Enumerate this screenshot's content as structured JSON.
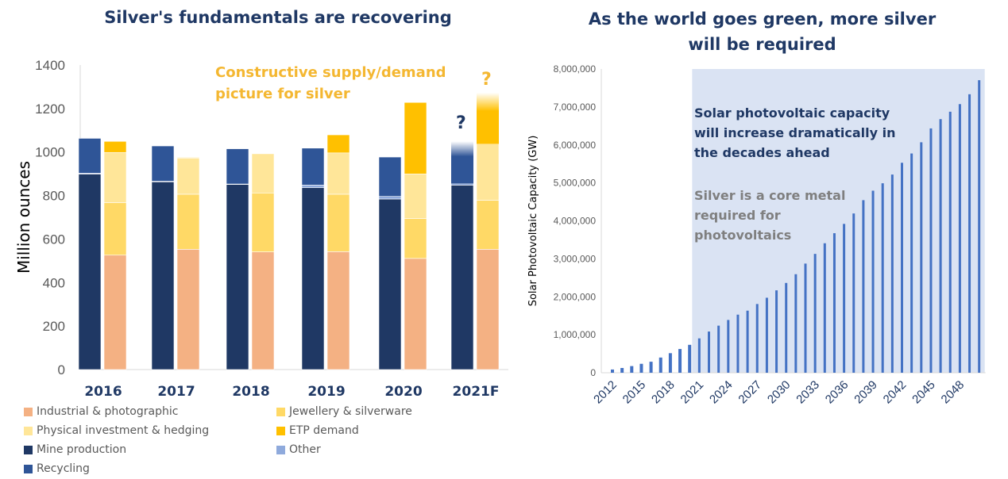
{
  "chart_data": [
    {
      "type": "bar",
      "subtype": "stacked-grouped",
      "title": "Silver's fundamentals are recovering",
      "xlabel": "",
      "ylabel": "Million ounces",
      "ylim": [
        0,
        1400
      ],
      "yticks": [
        0,
        200,
        400,
        600,
        800,
        1000,
        1200,
        1400
      ],
      "grid": false,
      "legend_position": "bottom",
      "categories": [
        "2016",
        "2017",
        "2018",
        "2019",
        "2020",
        "2021F"
      ],
      "groups": [
        {
          "name": "supply",
          "series": [
            {
              "name": "Mine production",
              "color": "#1f3864",
              "values": [
                899,
                863,
                851,
                836,
                784,
                848
              ]
            },
            {
              "name": "Other",
              "color": "#8faadc",
              "values": [
                4,
                3,
                2,
                12,
                12,
                7
              ]
            },
            {
              "name": "Recycling",
              "color": "#2f5597",
              "values": [
                160,
                162,
                162,
                170,
                181,
                194
              ]
            }
          ]
        },
        {
          "name": "demand",
          "series": [
            {
              "name": "Industrial & photographic",
              "color": "#f4b183",
              "values": [
                526,
                553,
                541,
                542,
                511,
                553
              ]
            },
            {
              "name": "Jewellery & silverware",
              "color": "#ffd966",
              "values": [
                241,
                253,
                271,
                264,
                183,
                225
              ]
            },
            {
              "name": "Physical investment & hedging",
              "color": "#ffe699",
              "values": [
                231,
                166,
                180,
                190,
                205,
                259
              ]
            },
            {
              "name": "ETP demand",
              "color": "#ffc000",
              "values": [
                51,
                3,
                0,
                83,
                329,
                236
              ]
            }
          ]
        }
      ],
      "faded_tops": {
        "2021F": true
      },
      "annotations": [
        {
          "text": "Constructive supply/demand",
          "color": "#f4b731"
        },
        {
          "text": "picture for silver",
          "color": "#f4b731"
        },
        {
          "text": "?",
          "target": "2021F supply",
          "color": "#1f3864"
        },
        {
          "text": "?",
          "target": "2021F demand",
          "color": "#f4b731"
        }
      ],
      "legend": [
        {
          "label": "Industrial & photographic",
          "color": "#f4b183"
        },
        {
          "label": "Jewellery & silverware",
          "color": "#ffd966"
        },
        {
          "label": "Physical investment & hedging",
          "color": "#ffe699"
        },
        {
          "label": "ETP demand",
          "color": "#ffc000"
        },
        {
          "label": "Mine production",
          "color": "#1f3864"
        },
        {
          "label": "Other",
          "color": "#8faadc"
        },
        {
          "label": "Recycling",
          "color": "#2f5597"
        }
      ]
    },
    {
      "type": "bar",
      "title": "As the world goes green, more silver will be required",
      "title_lines": [
        "As the world goes green, more silver",
        "will be required"
      ],
      "xlabel": "",
      "ylabel": "Solar Photovoltaic Capacity (GW)",
      "ylim": [
        0,
        8000000
      ],
      "yticks": [
        "0",
        "1,000,000",
        "2,000,000",
        "3,000,000",
        "4,000,000",
        "5,000,000",
        "6,000,000",
        "7,000,000",
        "8,000,000"
      ],
      "ytick_values": [
        0,
        1000000,
        2000000,
        3000000,
        4000000,
        5000000,
        6000000,
        7000000,
        8000000
      ],
      "xtick_labels": [
        "2012",
        "2015",
        "2018",
        "2021",
        "2024",
        "2027",
        "2030",
        "2033",
        "2036",
        "2039",
        "2042",
        "2045",
        "2048"
      ],
      "grid": false,
      "color": "#4472c4",
      "shaded_region": {
        "from": "2021",
        "to": "2050",
        "color": "#dae3f3"
      },
      "x": [
        2012,
        2013,
        2014,
        2015,
        2016,
        2017,
        2018,
        2019,
        2020,
        2021,
        2022,
        2023,
        2024,
        2025,
        2026,
        2027,
        2028,
        2029,
        2030,
        2031,
        2032,
        2033,
        2034,
        2035,
        2036,
        2037,
        2038,
        2039,
        2040,
        2041,
        2042,
        2043,
        2044,
        2045,
        2046,
        2047,
        2048,
        2049,
        2050
      ],
      "values": [
        85000,
        125000,
        175000,
        235000,
        290000,
        400000,
        515000,
        625000,
        735000,
        905000,
        1085000,
        1240000,
        1390000,
        1530000,
        1635000,
        1810000,
        1975000,
        2170000,
        2365000,
        2595000,
        2875000,
        3130000,
        3410000,
        3675000,
        3920000,
        4195000,
        4545000,
        4795000,
        4990000,
        5220000,
        5530000,
        5775000,
        6070000,
        6435000,
        6680000,
        6875000,
        7075000,
        7335000,
        7705000
      ],
      "annotations": [
        {
          "lines": [
            "Solar photovoltaic capacity",
            "will increase dramatically in",
            "the decades ahead"
          ],
          "color": "#1f3864"
        },
        {
          "lines": [
            "Silver is a core metal",
            "required for",
            "photovoltaics"
          ],
          "color": "#7f7f7f"
        }
      ]
    }
  ]
}
